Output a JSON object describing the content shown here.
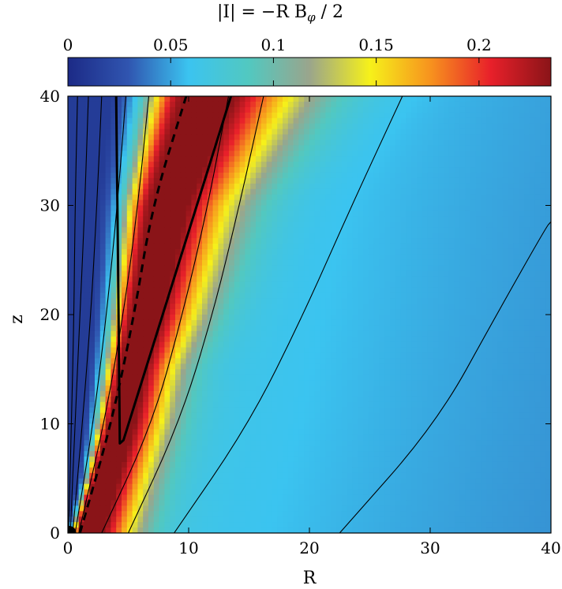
{
  "chart_data": {
    "type": "heatmap",
    "title": "|I| = −R B",
    "title_subscript": "φ",
    "title_suffix": " / 2",
    "xlabel": "R",
    "ylabel": "z",
    "xlim": [
      0,
      40
    ],
    "ylim": [
      0,
      40
    ],
    "x_ticks": [
      0,
      10,
      20,
      30,
      40
    ],
    "y_ticks": [
      0,
      10,
      20,
      30,
      40
    ],
    "colorbar": {
      "range": [
        0,
        0.235
      ],
      "ticks": [
        0,
        0.05,
        0.1,
        0.15,
        0.2
      ],
      "tick_labels": [
        "0",
        "0.05",
        "0.1",
        "0.15",
        "0.2"
      ],
      "colormap": [
        "#1c2a86",
        "#3055b0",
        "#3bc4f0",
        "#52c8c0",
        "#9aa58c",
        "#f6f11a",
        "#f7931e",
        "#e8202a",
        "#8a1418"
      ]
    },
    "field_lines": [
      {
        "style": "thin",
        "points": [
          [
            0.05,
            0
          ],
          [
            0.3,
            10
          ],
          [
            0.5,
            20
          ],
          [
            0.6,
            30
          ],
          [
            0.8,
            40
          ]
        ]
      },
      {
        "style": "thin",
        "points": [
          [
            0.2,
            0
          ],
          [
            0.6,
            10
          ],
          [
            1.0,
            20
          ],
          [
            1.4,
            30
          ],
          [
            1.7,
            40
          ]
        ]
      },
      {
        "style": "thin",
        "points": [
          [
            0.4,
            0
          ],
          [
            1.2,
            10
          ],
          [
            1.9,
            20
          ],
          [
            2.4,
            30
          ],
          [
            2.8,
            40
          ]
        ]
      },
      {
        "style": "thin",
        "points": [
          [
            0.6,
            0
          ],
          [
            2.1,
            10
          ],
          [
            3.2,
            20
          ],
          [
            4.1,
            30
          ],
          [
            4.8,
            40
          ]
        ]
      },
      {
        "style": "thin",
        "points": [
          [
            0.9,
            0
          ],
          [
            3.0,
            10
          ],
          [
            4.6,
            20
          ],
          [
            5.8,
            30
          ],
          [
            6.7,
            40
          ]
        ]
      },
      {
        "style": "dashed",
        "points": [
          [
            1.0,
            0
          ],
          [
            3.6,
            10
          ],
          [
            5.5,
            20
          ],
          [
            7.0,
            30
          ],
          [
            9.8,
            40
          ]
        ]
      },
      {
        "style": "thin",
        "points": [
          [
            2.8,
            0
          ],
          [
            7.0,
            10
          ],
          [
            9.5,
            20
          ],
          [
            11.6,
            30
          ],
          [
            13.3,
            40
          ]
        ]
      },
      {
        "style": "thin",
        "points": [
          [
            5.0,
            0
          ],
          [
            9.2,
            10
          ],
          [
            12.0,
            20
          ],
          [
            14.2,
            30
          ],
          [
            16.2,
            40
          ]
        ]
      },
      {
        "style": "thin",
        "points": [
          [
            8.8,
            0
          ],
          [
            15.0,
            10
          ],
          [
            19.5,
            20
          ],
          [
            23.5,
            30
          ],
          [
            27.7,
            40
          ]
        ]
      },
      {
        "style": "thin",
        "points": [
          [
            22.5,
            0
          ],
          [
            30.5,
            10
          ],
          [
            35.5,
            20
          ],
          [
            39.6,
            28
          ],
          [
            40,
            28.5
          ]
        ]
      }
    ],
    "boundary_line": {
      "style": "thick",
      "points": [
        [
          4.0,
          40
        ],
        [
          4.15,
          25
        ],
        [
          4.3,
          8.2
        ],
        [
          4.6,
          8.5
        ],
        [
          13.5,
          40
        ]
      ]
    }
  }
}
